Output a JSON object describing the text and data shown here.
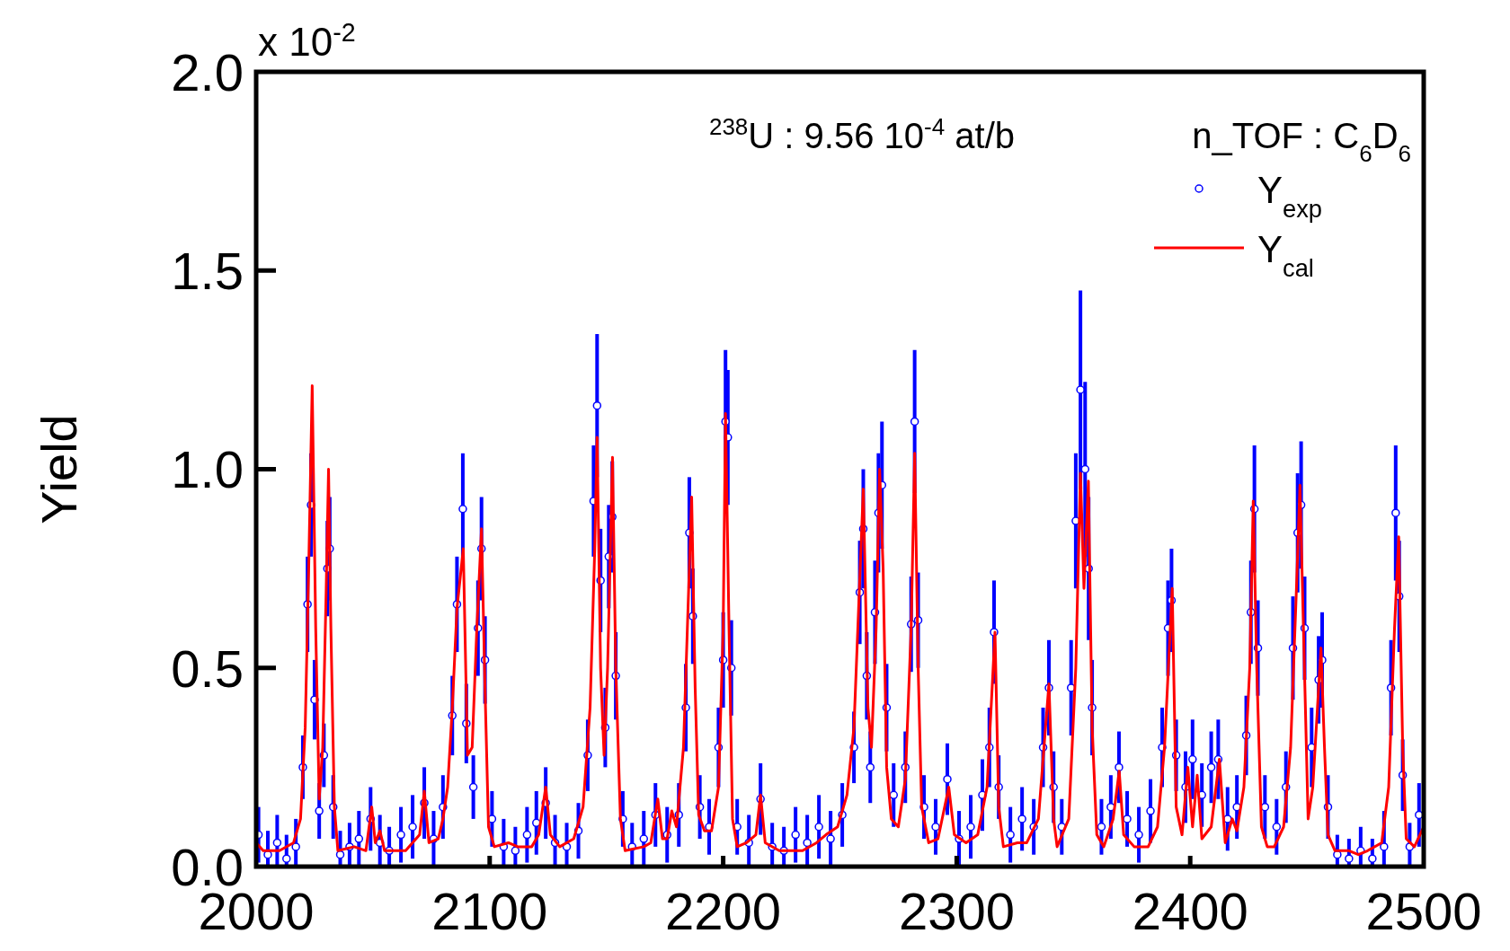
{
  "chart_data": {
    "type": "scatter",
    "ylabel": "Yield",
    "xlim": [
      2000,
      2500
    ],
    "xticks": [
      2000,
      2100,
      2200,
      2300,
      2400,
      2500
    ],
    "ylim": [
      0,
      2.0
    ],
    "yticks": [
      {
        "value": 0,
        "label": "0.0"
      },
      {
        "value": 0.5,
        "label": "0.5"
      },
      {
        "value": 1.0,
        "label": "1.0"
      },
      {
        "value": 1.5,
        "label": "1.5"
      },
      {
        "value": 2.0,
        "label": "2.0"
      }
    ],
    "legend": "top right",
    "annotations": [
      "x 10$^{-2}$",
      "$^{238}$U : 9.56 10$^{-4}$ at/b",
      "n_TOF : C$_{6}$D$_{6}$"
    ],
    "series": [
      {
        "name": "Y$_{exp}$",
        "type": "scatter",
        "color": "#0000ff",
        "marker": "circle",
        "x": [
          2001,
          2005,
          2009,
          2013,
          2017,
          2020,
          2022,
          2023.5,
          2025,
          2027,
          2029,
          2030.5,
          2031.5,
          2033,
          2036,
          2040,
          2044,
          2049,
          2053,
          2057,
          2062,
          2067,
          2072,
          2076,
          2080,
          2084,
          2086,
          2088.5,
          2090,
          2093,
          2095,
          2096.5,
          2098,
          2101,
          2106,
          2111,
          2116,
          2120,
          2124,
          2128,
          2133,
          2138,
          2142,
          2144.5,
          2146,
          2147.5,
          2149.5,
          2151,
          2152.5,
          2154,
          2157,
          2161,
          2166,
          2171,
          2176,
          2181,
          2184,
          2185.5,
          2187,
          2190,
          2194,
          2198,
          2200,
          2201,
          2202,
          2203.5,
          2206,
          2211,
          2216,
          2221,
          2226,
          2231,
          2236,
          2241,
          2246,
          2251,
          2256,
          2258.5,
          2260,
          2261.5,
          2263,
          2265,
          2266.5,
          2268,
          2270,
          2273,
          2278,
          2280.5,
          2282,
          2283.5,
          2286,
          2291,
          2296,
          2301,
          2306,
          2311,
          2314,
          2316,
          2318,
          2323,
          2328,
          2333,
          2337,
          2339.5,
          2341.5,
          2345,
          2349,
          2351,
          2353,
          2355,
          2356.5,
          2358,
          2362,
          2366,
          2369.5,
          2373,
          2378,
          2383,
          2388,
          2390.5,
          2392,
          2394,
          2398,
          2401,
          2405,
          2409,
          2412,
          2416,
          2420,
          2424,
          2426,
          2427.5,
          2429,
          2432,
          2437,
          2441,
          2444,
          2446,
          2447.5,
          2449,
          2452,
          2455,
          2456.5,
          2459,
          2463,
          2468,
          2473,
          2478,
          2483,
          2486,
          2488,
          2489.5,
          2491,
          2494,
          2498
        ],
        "values": [
          0.08,
          0.03,
          0.06,
          0.02,
          0.05,
          0.25,
          0.66,
          0.91,
          0.42,
          0.14,
          0.28,
          0.75,
          0.8,
          0.15,
          0.03,
          0.05,
          0.07,
          0.12,
          0.06,
          0.04,
          0.08,
          0.1,
          0.16,
          0.07,
          0.15,
          0.38,
          0.66,
          0.9,
          0.36,
          0.2,
          0.6,
          0.8,
          0.52,
          0.12,
          0.05,
          0.04,
          0.08,
          0.11,
          0.16,
          0.06,
          0.05,
          0.09,
          0.28,
          0.92,
          1.16,
          0.72,
          0.35,
          0.78,
          0.88,
          0.48,
          0.12,
          0.05,
          0.07,
          0.13,
          0.08,
          0.13,
          0.4,
          0.84,
          0.63,
          0.15,
          0.1,
          0.3,
          0.52,
          1.12,
          1.08,
          0.5,
          0.1,
          0.06,
          0.17,
          0.05,
          0.04,
          0.08,
          0.06,
          0.1,
          0.07,
          0.13,
          0.3,
          0.69,
          0.85,
          0.48,
          0.25,
          0.64,
          0.89,
          0.96,
          0.4,
          0.18,
          0.25,
          0.61,
          1.12,
          0.62,
          0.15,
          0.1,
          0.22,
          0.07,
          0.1,
          0.18,
          0.3,
          0.59,
          0.2,
          0.08,
          0.12,
          0.1,
          0.3,
          0.45,
          0.2,
          0.1,
          0.45,
          0.87,
          1.2,
          1.0,
          0.75,
          0.4,
          0.1,
          0.15,
          0.25,
          0.12,
          0.08,
          0.14,
          0.3,
          0.6,
          0.67,
          0.28,
          0.2,
          0.27,
          0.18,
          0.25,
          0.27,
          0.12,
          0.15,
          0.33,
          0.64,
          0.9,
          0.55,
          0.15,
          0.1,
          0.2,
          0.55,
          0.84,
          0.91,
          0.6,
          0.3,
          0.47,
          0.52,
          0.15,
          0.03,
          0.02,
          0.04,
          0.02,
          0.05,
          0.45,
          0.89,
          0.68,
          0.23,
          0.05,
          0.13
        ],
        "errors": [
          0.07,
          0.06,
          0.07,
          0.06,
          0.07,
          0.08,
          0.12,
          0.13,
          0.1,
          0.07,
          0.08,
          0.12,
          0.13,
          0.08,
          0.06,
          0.06,
          0.07,
          0.08,
          0.07,
          0.06,
          0.07,
          0.08,
          0.09,
          0.07,
          0.08,
          0.1,
          0.12,
          0.14,
          0.1,
          0.08,
          0.12,
          0.13,
          0.11,
          0.07,
          0.07,
          0.06,
          0.07,
          0.08,
          0.09,
          0.07,
          0.06,
          0.07,
          0.09,
          0.14,
          0.18,
          0.13,
          0.1,
          0.13,
          0.14,
          0.11,
          0.07,
          0.06,
          0.07,
          0.08,
          0.07,
          0.08,
          0.11,
          0.14,
          0.12,
          0.08,
          0.07,
          0.1,
          0.12,
          0.18,
          0.17,
          0.12,
          0.07,
          0.07,
          0.09,
          0.06,
          0.06,
          0.07,
          0.07,
          0.08,
          0.07,
          0.08,
          0.09,
          0.13,
          0.15,
          0.11,
          0.09,
          0.13,
          0.15,
          0.16,
          0.11,
          0.08,
          0.09,
          0.12,
          0.18,
          0.12,
          0.08,
          0.07,
          0.09,
          0.07,
          0.08,
          0.09,
          0.1,
          0.13,
          0.08,
          0.07,
          0.08,
          0.07,
          0.1,
          0.12,
          0.09,
          0.07,
          0.12,
          0.17,
          0.25,
          0.22,
          0.18,
          0.12,
          0.07,
          0.08,
          0.09,
          0.07,
          0.07,
          0.08,
          0.1,
          0.12,
          0.13,
          0.09,
          0.09,
          0.1,
          0.08,
          0.09,
          0.1,
          0.08,
          0.08,
          0.1,
          0.13,
          0.16,
          0.12,
          0.08,
          0.07,
          0.09,
          0.13,
          0.15,
          0.16,
          0.13,
          0.1,
          0.11,
          0.12,
          0.08,
          0.05,
          0.05,
          0.06,
          0.05,
          0.09,
          0.12,
          0.17,
          0.14,
          0.09,
          0.06,
          0.08
        ]
      },
      {
        "name": "Y$_{cal}$",
        "type": "line",
        "color": "#ff0000",
        "marker": "none",
        "x": [
          2000,
          2003,
          2010,
          2016,
          2019,
          2021,
          2022.5,
          2024,
          2025.5,
          2027,
          2028.5,
          2030,
          2031,
          2032,
          2033.5,
          2035,
          2042,
          2047,
          2049.5,
          2051,
          2053,
          2055,
          2064,
          2070,
          2072,
          2074,
          2078,
          2080,
          2082,
          2084,
          2086,
          2088.7,
          2090.5,
          2092.5,
          2094.5,
          2096.5,
          2098,
          2099.5,
          2102,
          2108,
          2112,
          2118,
          2121,
          2124,
          2126,
          2130,
          2136,
          2140,
          2143,
          2145,
          2146,
          2147.5,
          2149,
          2150.5,
          2152.6,
          2154,
          2156,
          2158,
          2166,
          2169,
          2172,
          2174,
          2176,
          2178,
          2180,
          2183,
          2186.5,
          2188,
          2189.5,
          2192,
          2195,
          2198,
          2200,
          2201,
          2202.5,
          2204,
          2206,
          2210,
          2214,
          2216,
          2218,
          2224,
          2234,
          2240,
          2244,
          2249,
          2253,
          2256,
          2258,
          2260,
          2262,
          2263.5,
          2265.5,
          2267,
          2268.5,
          2270,
          2272,
          2275,
          2278,
          2280.5,
          2282,
          2283.5,
          2285,
          2288,
          2292,
          2296.6,
          2299,
          2304,
          2309,
          2313,
          2316.4,
          2318,
          2320,
          2326,
          2330,
          2335,
          2339.5,
          2341.5,
          2343,
          2348,
          2351,
          2353,
          2354.5,
          2356.4,
          2358,
          2360,
          2363,
          2367,
          2369.6,
          2371.5,
          2376,
          2382,
          2386,
          2389,
          2392.3,
          2394,
          2396.5,
          2399,
          2401,
          2403,
          2405,
          2409,
          2412.5,
          2415,
          2418,
          2420,
          2423,
          2425.5,
          2427,
          2428.5,
          2430.5,
          2433,
          2436,
          2440,
          2443,
          2445.5,
          2447,
          2448.5,
          2450.5,
          2452.5,
          2454.5,
          2456,
          2457.5,
          2459,
          2462,
          2468,
          2472,
          2476,
          2482,
          2485,
          2487.5,
          2489.3,
          2491,
          2492.5,
          2496,
          2500
        ],
        "values": [
          0.06,
          0.04,
          0.04,
          0.06,
          0.12,
          0.35,
          0.75,
          1.21,
          0.6,
          0.17,
          0.3,
          0.7,
          1.0,
          0.6,
          0.15,
          0.04,
          0.05,
          0.04,
          0.15,
          0.06,
          0.09,
          0.04,
          0.04,
          0.08,
          0.19,
          0.06,
          0.07,
          0.12,
          0.2,
          0.4,
          0.65,
          0.8,
          0.28,
          0.3,
          0.6,
          0.85,
          0.45,
          0.1,
          0.05,
          0.06,
          0.05,
          0.05,
          0.08,
          0.2,
          0.08,
          0.05,
          0.07,
          0.15,
          0.4,
          0.8,
          1.08,
          0.5,
          0.28,
          0.5,
          1.03,
          0.5,
          0.12,
          0.04,
          0.05,
          0.06,
          0.17,
          0.07,
          0.07,
          0.14,
          0.1,
          0.3,
          0.93,
          0.45,
          0.13,
          0.09,
          0.09,
          0.2,
          0.6,
          1.14,
          0.6,
          0.12,
          0.05,
          0.06,
          0.08,
          0.18,
          0.06,
          0.04,
          0.04,
          0.06,
          0.08,
          0.1,
          0.18,
          0.35,
          0.65,
          0.95,
          0.4,
          0.3,
          0.6,
          1.0,
          0.75,
          0.25,
          0.12,
          0.1,
          0.22,
          0.6,
          1.04,
          0.5,
          0.15,
          0.06,
          0.07,
          0.2,
          0.08,
          0.06,
          0.08,
          0.2,
          0.59,
          0.15,
          0.05,
          0.06,
          0.06,
          0.12,
          0.46,
          0.12,
          0.05,
          0.12,
          0.5,
          0.99,
          0.7,
          0.97,
          0.35,
          0.08,
          0.05,
          0.12,
          0.24,
          0.08,
          0.05,
          0.05,
          0.1,
          0.3,
          0.7,
          0.15,
          0.08,
          0.25,
          0.1,
          0.23,
          0.07,
          0.1,
          0.27,
          0.06,
          0.12,
          0.09,
          0.2,
          0.5,
          0.92,
          0.5,
          0.1,
          0.05,
          0.05,
          0.1,
          0.3,
          0.7,
          0.96,
          0.6,
          0.12,
          0.2,
          0.4,
          0.55,
          0.3,
          0.08,
          0.04,
          0.04,
          0.03,
          0.04,
          0.06,
          0.2,
          0.6,
          0.83,
          0.3,
          0.07,
          0.05,
          0.1
        ]
      }
    ]
  }
}
